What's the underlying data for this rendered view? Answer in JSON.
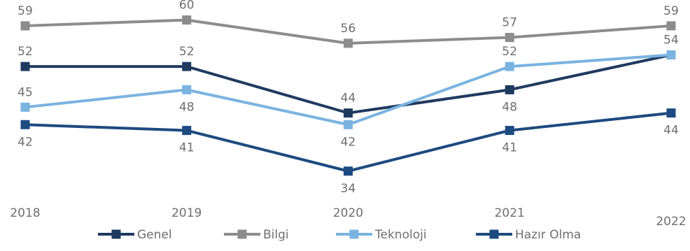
{
  "chart_data": {
    "type": "line",
    "x": [
      "2018",
      "2019",
      "2020",
      "2021",
      "2022"
    ],
    "series": [
      {
        "name": "Bilgi",
        "values": [
          59,
          60,
          56,
          57,
          59
        ],
        "color": "#8c8c8c"
      },
      {
        "name": "Genel",
        "values": [
          52,
          52,
          44,
          48,
          54
        ],
        "color": "#1f3a5f"
      },
      {
        "name": "Teknoloji",
        "values": [
          45,
          48,
          42,
          52,
          54
        ],
        "color": "#7ab3e0"
      },
      {
        "name": "Hazır Olma",
        "values": [
          42,
          41,
          34,
          41,
          44
        ],
        "color": "#1d4a80"
      }
    ],
    "legend_order": [
      "Genel",
      "Bilgi",
      "Teknoloji",
      "Hazır Olma"
    ],
    "label_placement": {
      "Bilgi": [
        "above",
        "above",
        "above",
        "above",
        "above"
      ],
      "Genel": [
        "above",
        "above",
        "above",
        "below",
        "above"
      ],
      "Teknoloji": [
        "above",
        "below",
        "below",
        "above",
        "hidden"
      ],
      "Hazır Olma": [
        "below",
        "below",
        "below",
        "below",
        "below"
      ]
    },
    "title": "",
    "xlabel": "",
    "ylabel": "",
    "ylim": [
      30,
      62
    ],
    "grid": false,
    "legend": "bottom"
  }
}
